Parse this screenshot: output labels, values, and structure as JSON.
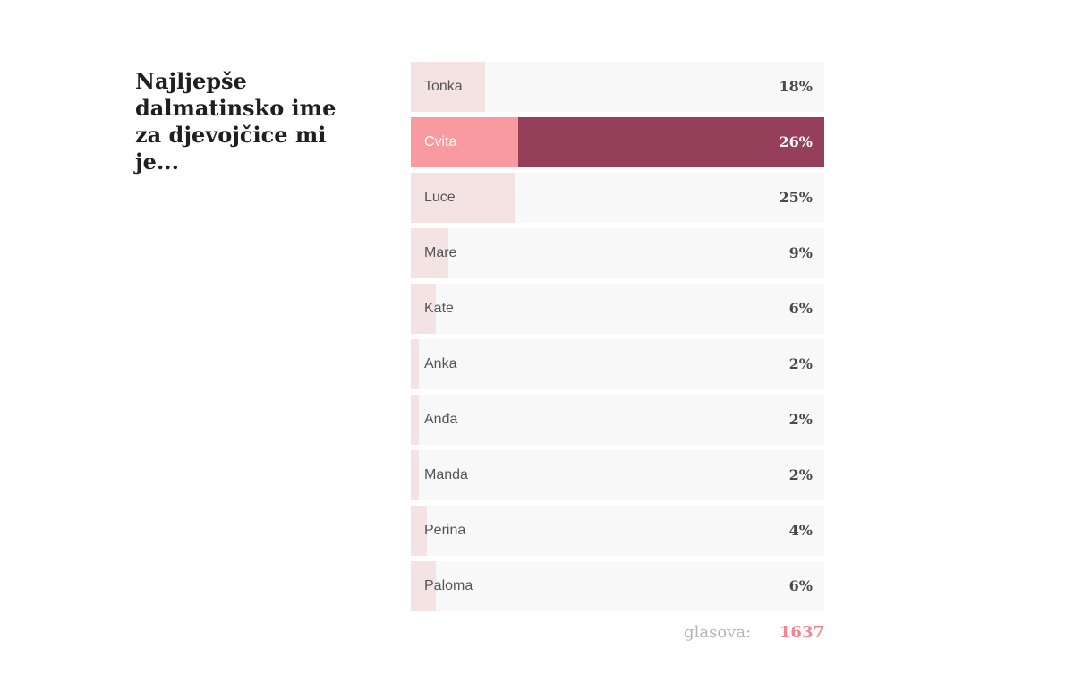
{
  "question": "Najljepše dalmatinsko ime za djevojčice mi je...",
  "colors": {
    "bar_fill": "#f4e3e3",
    "row_bg": "#f8f8f8",
    "selected_bg": "#953f5b",
    "selected_fill": "#f99aa0",
    "votes_count": "#f2868c"
  },
  "chart_data": {
    "type": "bar",
    "orientation": "horizontal",
    "title": "Najljepše dalmatinsko ime za djevojčice mi je...",
    "categories": [
      "Tonka",
      "Cvita",
      "Luce",
      "Mare",
      "Kate",
      "Anka",
      "Anđa",
      "Manda",
      "Perina",
      "Paloma"
    ],
    "values": [
      18,
      26,
      25,
      9,
      6,
      2,
      2,
      2,
      4,
      6
    ],
    "labels": [
      "18%",
      "26%",
      "25%",
      "9%",
      "6%",
      "2%",
      "2%",
      "2%",
      "4%",
      "6%"
    ],
    "selected_index": 1,
    "unit": "%"
  },
  "votes": {
    "label": "glasova:",
    "count": "1637"
  }
}
